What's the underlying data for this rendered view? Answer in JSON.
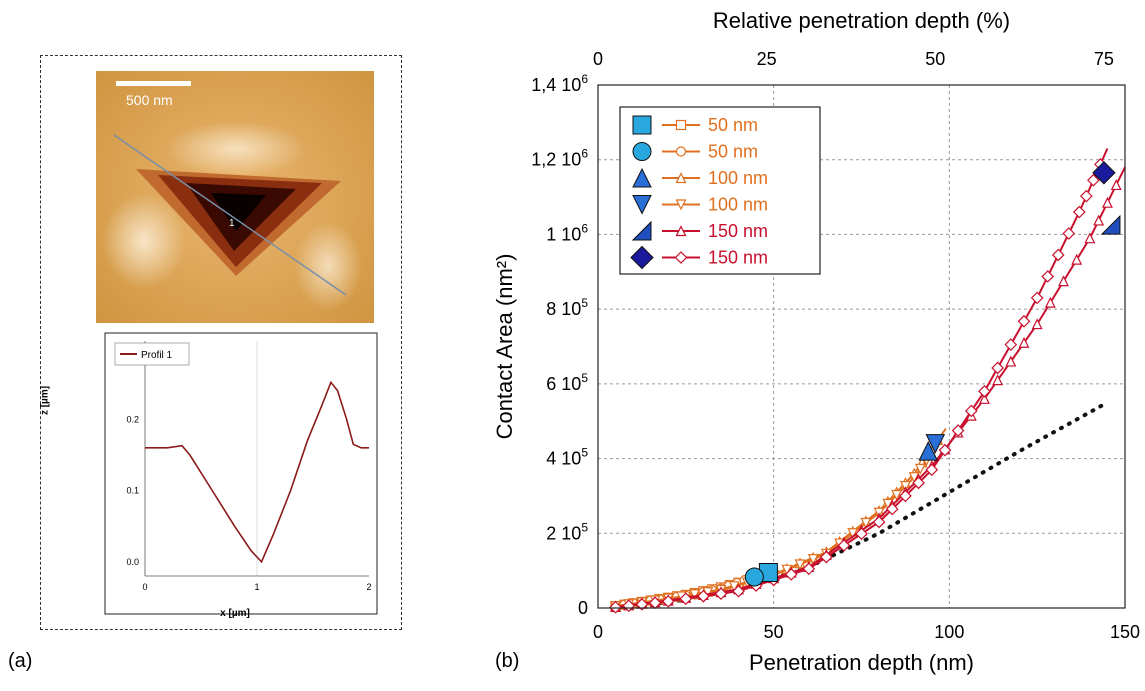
{
  "panel_a": {
    "label": "(a)",
    "scale_bar_label": "500 nm",
    "line_marker": "1",
    "profile": {
      "legend": "Profil 1",
      "ylabel": "z [µm]",
      "xlabel": "x [µm]",
      "y_ticks": [
        "0.0",
        "0.1",
        "0.2",
        "0.3"
      ],
      "x_ticks": [
        "0",
        "1",
        "2"
      ],
      "xlim": [
        0,
        2
      ],
      "ylim": [
        -0.02,
        0.31
      ],
      "points": [
        [
          0,
          0.16
        ],
        [
          0.1,
          0.16
        ],
        [
          0.2,
          0.16
        ],
        [
          0.33,
          0.163
        ],
        [
          0.4,
          0.15
        ],
        [
          0.6,
          0.1
        ],
        [
          0.8,
          0.05
        ],
        [
          0.95,
          0.015
        ],
        [
          1.04,
          0.0
        ],
        [
          1.15,
          0.04
        ],
        [
          1.3,
          0.1
        ],
        [
          1.45,
          0.17
        ],
        [
          1.58,
          0.22
        ],
        [
          1.66,
          0.252
        ],
        [
          1.72,
          0.24
        ],
        [
          1.8,
          0.2
        ],
        [
          1.86,
          0.165
        ],
        [
          1.93,
          0.16
        ],
        [
          2.0,
          0.16
        ]
      ],
      "color": "#8b1a1a"
    }
  },
  "chart_data": {
    "type": "scatter",
    "panel_label": "(b)",
    "xlabel": "Penetration depth (nm)",
    "ylabel": "Contact Area (nm²)",
    "top_xlabel": "Relative penetration depth (%)",
    "xlim": [
      0,
      150
    ],
    "ylim": [
      0,
      1400000
    ],
    "x_ticks": [
      "0",
      "50",
      "100",
      "150"
    ],
    "top_x_ticks": [
      {
        "label": "0",
        "x": 0
      },
      {
        "label": "25",
        "x": 48
      },
      {
        "label": "50",
        "x": 96
      },
      {
        "label": "75",
        "x": 144
      }
    ],
    "y_ticks": [
      {
        "label": "0",
        "value": 0
      },
      {
        "label": "2 10",
        "exp": "5",
        "value": 200000
      },
      {
        "label": "4 10",
        "exp": "5",
        "value": 400000
      },
      {
        "label": "6 10",
        "exp": "5",
        "value": 600000
      },
      {
        "label": "8 10",
        "exp": "5",
        "value": 800000
      },
      {
        "label": "1 10",
        "exp": "6",
        "value": 1000000
      },
      {
        "label": "1,2 10",
        "exp": "6",
        "value": 1200000
      },
      {
        "label": "1,4 10",
        "exp": "6",
        "value": 1400000
      }
    ],
    "grid": true,
    "legend_position": "top-left",
    "colors": {
      "orange": "#e07020",
      "red": "#c8102e",
      "blue": "#29a8e0",
      "dark_blue": "#1f4fbf",
      "navy": "#1a1a9c"
    },
    "series": [
      {
        "name": "50 nm",
        "marker_end": "square",
        "curve_marker": "square",
        "color": "#e07020",
        "points": [
          [
            5,
            5000
          ],
          [
            15,
            20000
          ],
          [
            25,
            35000
          ],
          [
            35,
            55000
          ],
          [
            45,
            80000
          ],
          [
            49,
            95000
          ]
        ],
        "end": [
          48.5,
          95000
        ]
      },
      {
        "name": "50 nm",
        "marker_end": "circle",
        "curve_marker": "circle",
        "color": "#e07020",
        "points": [
          [
            5,
            5000
          ],
          [
            15,
            20000
          ],
          [
            25,
            33000
          ],
          [
            35,
            52000
          ],
          [
            44,
            82000
          ]
        ],
        "end": [
          44.5,
          83000
        ]
      },
      {
        "name": "100 nm",
        "marker_end": "triangle-up",
        "curve_marker": "triangle-up",
        "color": "#e07020",
        "points": [
          [
            5,
            5000
          ],
          [
            20,
            25000
          ],
          [
            35,
            50000
          ],
          [
            50,
            90000
          ],
          [
            65,
            150000
          ],
          [
            80,
            260000
          ],
          [
            90,
            360000
          ],
          [
            99,
            480000
          ]
        ],
        "end": [
          94,
          420000
        ]
      },
      {
        "name": "100 nm",
        "marker_end": "triangle-down",
        "curve_marker": "triangle-down",
        "color": "#e07020",
        "points": [
          [
            5,
            5000
          ],
          [
            20,
            25000
          ],
          [
            35,
            48000
          ],
          [
            50,
            88000
          ],
          [
            65,
            145000
          ],
          [
            80,
            255000
          ],
          [
            90,
            350000
          ],
          [
            97,
            440000
          ]
        ],
        "end": [
          96,
          440000
        ]
      },
      {
        "name": "150 nm",
        "marker_end": "half-square",
        "curve_marker": "triangle",
        "color": "#c8102e",
        "points": [
          [
            5,
            3000
          ],
          [
            20,
            20000
          ],
          [
            40,
            50000
          ],
          [
            60,
            110000
          ],
          [
            80,
            240000
          ],
          [
            95,
            380000
          ],
          [
            110,
            560000
          ],
          [
            125,
            760000
          ],
          [
            140,
            990000
          ],
          [
            150,
            1180000
          ]
        ],
        "end": [
          146,
          1025000
        ]
      },
      {
        "name": "150 nm",
        "marker_end": "diamond",
        "curve_marker": "diamond",
        "color": "#c8102e",
        "points": [
          [
            5,
            2000
          ],
          [
            20,
            18000
          ],
          [
            40,
            45000
          ],
          [
            60,
            105000
          ],
          [
            80,
            230000
          ],
          [
            95,
            370000
          ],
          [
            110,
            580000
          ],
          [
            125,
            830000
          ],
          [
            137,
            1060000
          ],
          [
            145,
            1230000
          ]
        ],
        "end": [
          144,
          1165000
        ]
      }
    ],
    "reference_curve": {
      "style": "dotted",
      "color": "#111111",
      "points": [
        [
          5,
          5000
        ],
        [
          20,
          15000
        ],
        [
          40,
          50000
        ],
        [
          60,
          110000
        ],
        [
          80,
          200000
        ],
        [
          100,
          310000
        ],
        [
          120,
          420000
        ],
        [
          145,
          550000
        ]
      ]
    }
  }
}
